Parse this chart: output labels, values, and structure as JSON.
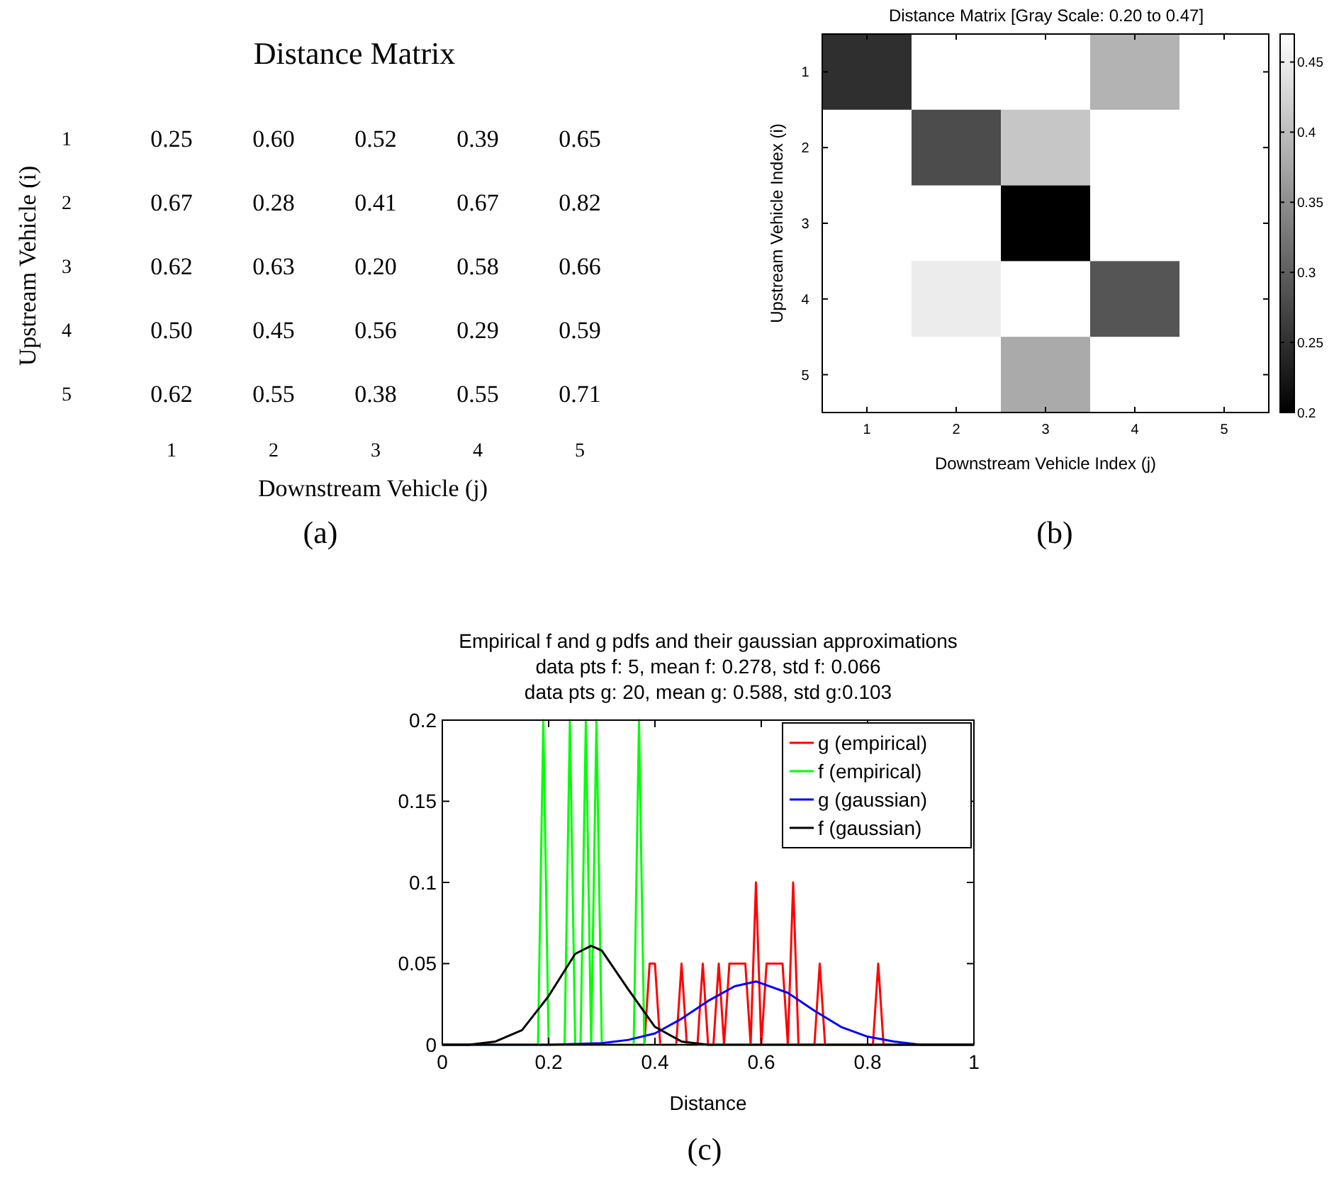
{
  "chart_data": [
    {
      "type": "heatmap",
      "title": "Distance Matrix",
      "xlabel": "Downstream Vehicle (j)",
      "ylabel": "Upstream Vehicle (i)",
      "categories": [
        "1",
        "2",
        "3",
        "4",
        "5"
      ],
      "y_categories": [
        "1",
        "2",
        "3",
        "4",
        "5"
      ],
      "cells": [
        [
          0.25,
          0.6,
          0.52,
          0.39,
          0.65
        ],
        [
          0.67,
          0.28,
          0.41,
          0.67,
          0.82
        ],
        [
          0.62,
          0.63,
          0.2,
          0.58,
          0.66
        ],
        [
          0.5,
          0.45,
          0.56,
          0.29,
          0.59
        ],
        [
          0.62,
          0.55,
          0.38,
          0.55,
          0.71
        ]
      ],
      "cell_labels": [
        [
          "0.25",
          "0.60",
          "0.52",
          "0.39",
          "0.65"
        ],
        [
          "0.67",
          "0.28",
          "0.41",
          "0.67",
          "0.82"
        ],
        [
          "0.62",
          "0.63",
          "0.20",
          "0.58",
          "0.66"
        ],
        [
          "0.50",
          "0.45",
          "0.56",
          "0.29",
          "0.59"
        ],
        [
          "0.62",
          "0.55",
          "0.38",
          "0.55",
          "0.71"
        ]
      ],
      "annotations": [
        "(a)"
      ]
    },
    {
      "type": "heatmap",
      "title": "Distance Matrix [Gray Scale: 0.20 to 0.47]",
      "xlabel": "Downstream Vehicle Index (j)",
      "ylabel": "Upstream Vehicle Index (i)",
      "categories": [
        "1",
        "2",
        "3",
        "4",
        "5"
      ],
      "y_categories": [
        "1",
        "2",
        "3",
        "4",
        "5"
      ],
      "cells": [
        [
          0.25,
          null,
          null,
          0.39,
          null
        ],
        [
          null,
          0.28,
          0.41,
          null,
          null
        ],
        [
          null,
          null,
          0.2,
          null,
          null
        ],
        [
          null,
          0.45,
          null,
          0.29,
          null
        ],
        [
          null,
          null,
          0.38,
          null,
          null
        ]
      ],
      "clim": [
        0.2,
        0.47
      ],
      "cticks": [
        0.2,
        0.25,
        0.3,
        0.35,
        0.4,
        0.45
      ],
      "annotations": [
        "(b)"
      ]
    },
    {
      "type": "line",
      "title": "Empirical f and g pdfs and their gaussian approximations",
      "subtitle": "data pts f: 5, mean f: 0.278, std f: 0.066\ndata pts g: 20, mean g: 0.588, std g:0.103",
      "xlabel": "Distance",
      "xlim": [
        0,
        1
      ],
      "xticks": [
        0,
        0.2,
        0.4,
        0.6,
        0.8,
        1
      ],
      "ylim": [
        0,
        0.2
      ],
      "yticks": [
        0,
        0.05,
        0.1,
        0.15,
        0.2
      ],
      "grid": false,
      "legend": "top right",
      "annotations": [
        "(c)"
      ],
      "series": [
        {
          "name": "g (empirical)",
          "color": "#ff0000",
          "x": [
            0,
            0.38,
            0.39,
            0.4,
            0.41,
            0.44,
            0.45,
            0.46,
            0.48,
            0.49,
            0.5,
            0.51,
            0.52,
            0.53,
            0.54,
            0.57,
            0.58,
            0.59,
            0.6,
            0.61,
            0.64,
            0.65,
            0.66,
            0.67,
            0.7,
            0.71,
            0.72,
            0.81,
            0.82,
            0.83,
            1
          ],
          "values": [
            0,
            0,
            0.05,
            0.05,
            0,
            0,
            0.05,
            0,
            0,
            0.05,
            0,
            0,
            0.05,
            0,
            0.05,
            0.05,
            0,
            0.1,
            0,
            0.05,
            0.05,
            0,
            0.1,
            0,
            0,
            0.05,
            0,
            0,
            0.05,
            0,
            0
          ]
        },
        {
          "name": "f (empirical)",
          "color": "#00ff00",
          "x": [
            0,
            0.18,
            0.19,
            0.2,
            0.23,
            0.24,
            0.25,
            0.26,
            0.27,
            0.28,
            0.29,
            0.3,
            0.36,
            0.37,
            0.38,
            1
          ],
          "values": [
            0,
            0,
            0.2,
            0,
            0,
            0.2,
            0,
            0,
            0.2,
            0,
            0.2,
            0,
            0,
            0.2,
            0,
            0
          ]
        },
        {
          "name": "g (gaussian)",
          "color": "#0000ff",
          "x": [
            0,
            0.2,
            0.3,
            0.35,
            0.4,
            0.45,
            0.5,
            0.55,
            0.59,
            0.65,
            0.7,
            0.75,
            0.8,
            0.85,
            0.9,
            1
          ],
          "values": [
            0,
            0,
            0.001,
            0.003,
            0.007,
            0.016,
            0.027,
            0.036,
            0.039,
            0.032,
            0.021,
            0.011,
            0.005,
            0.002,
            0,
            0
          ]
        },
        {
          "name": "f (gaussian)",
          "color": "#000000",
          "x": [
            0,
            0.05,
            0.1,
            0.15,
            0.2,
            0.25,
            0.28,
            0.3,
            0.35,
            0.4,
            0.45,
            0.5,
            0.55,
            1
          ],
          "values": [
            0,
            0,
            0.002,
            0.009,
            0.03,
            0.056,
            0.061,
            0.058,
            0.034,
            0.011,
            0.002,
            0,
            0,
            0
          ]
        }
      ]
    }
  ]
}
